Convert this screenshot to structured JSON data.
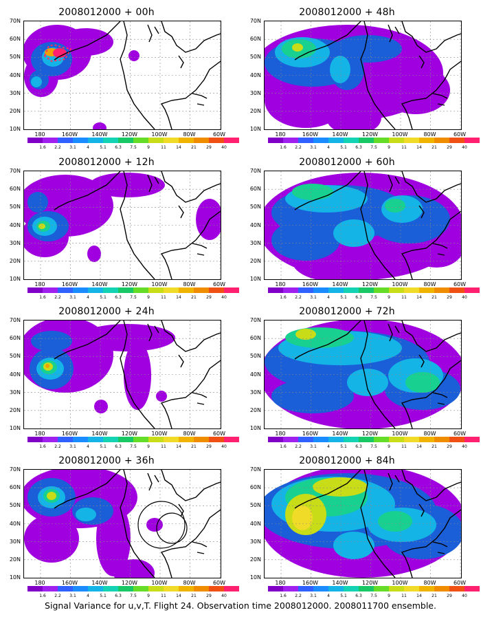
{
  "panels": [
    {
      "title": "2008012000 + 00h",
      "blobs": [
        {
          "color": "#a000e0",
          "ellipses": [
            [
              48,
              45,
              50,
              40
            ],
            [
              25,
              80,
              25,
              30
            ],
            [
              90,
              30,
              40,
              20
            ],
            [
              160,
              50,
              8,
              8
            ],
            [
              110,
              155,
              10,
              8
            ]
          ]
        },
        {
          "color": "#1a5fd8",
          "ellipses": [
            [
              40,
              55,
              30,
              25
            ],
            [
              22,
              85,
              14,
              14
            ]
          ]
        },
        {
          "color": "#14b4e6",
          "ellipses": [
            [
              42,
              52,
              16,
              14
            ],
            [
              18,
              88,
              8,
              8
            ]
          ]
        },
        {
          "color": "#f0a000",
          "ellipses": [
            [
              40,
              45,
              10,
              6
            ]
          ]
        },
        {
          "color": "#ff2070",
          "ellipses": [
            [
              52,
              46,
              10,
              7
            ]
          ]
        }
      ]
    },
    {
      "title": "2008012000 + 48h",
      "blobs": [
        {
          "color": "#a000e0",
          "ellipses": [
            [
              120,
              75,
              140,
              70
            ],
            [
              60,
              115,
              60,
              40
            ],
            [
              220,
              100,
              50,
              35
            ],
            [
              130,
              140,
              40,
              25
            ]
          ]
        },
        {
          "color": "#1a5fd8",
          "ellipses": [
            [
              70,
              60,
              70,
              35
            ],
            [
              150,
              40,
              50,
              20
            ],
            [
              120,
              70,
              25,
              30
            ]
          ]
        },
        {
          "color": "#14b4e6",
          "ellipses": [
            [
              55,
              45,
              40,
              22
            ],
            [
              110,
              70,
              15,
              20
            ]
          ]
        },
        {
          "color": "#18d090",
          "ellipses": [
            [
              50,
              40,
              25,
              14
            ]
          ]
        },
        {
          "color": "#c8dc18",
          "ellipses": [
            [
              48,
              38,
              8,
              6
            ]
          ]
        }
      ]
    },
    {
      "title": "2008012000 + 12h",
      "blobs": [
        {
          "color": "#a000e0",
          "ellipses": [
            [
              60,
              50,
              70,
              45
            ],
            [
              30,
              95,
              35,
              30
            ],
            [
              150,
              20,
              55,
              18
            ],
            [
              270,
              70,
              20,
              30
            ],
            [
              102,
              120,
              10,
              12
            ]
          ]
        },
        {
          "color": "#1a5fd8",
          "ellipses": [
            [
              35,
              80,
              30,
              22
            ],
            [
              20,
              45,
              15,
              15
            ]
          ]
        },
        {
          "color": "#14b4e6",
          "ellipses": [
            [
              30,
              80,
              18,
              14
            ]
          ]
        },
        {
          "color": "#18d090",
          "ellipses": [
            [
              28,
              80,
              10,
              8
            ]
          ]
        },
        {
          "color": "#c8dc18",
          "ellipses": [
            [
              26,
              80,
              5,
              4
            ]
          ]
        }
      ]
    },
    {
      "title": "2008012000 + 60h",
      "blobs": [
        {
          "color": "#a000e0",
          "ellipses": [
            [
              140,
              80,
              150,
              78
            ],
            [
              100,
              130,
              60,
              30
            ],
            [
              250,
              110,
              40,
              30
            ]
          ]
        },
        {
          "color": "#1a5fd8",
          "ellipses": [
            [
              110,
              60,
              100,
              40
            ],
            [
              210,
              70,
              60,
              35
            ],
            [
              60,
              100,
              50,
              30
            ]
          ]
        },
        {
          "color": "#14b4e6",
          "ellipses": [
            [
              90,
              40,
              60,
              20
            ],
            [
              200,
              55,
              30,
              20
            ],
            [
              130,
              90,
              30,
              20
            ]
          ]
        },
        {
          "color": "#18d090",
          "ellipses": [
            [
              70,
              30,
              30,
              12
            ],
            [
              190,
              50,
              15,
              10
            ]
          ]
        }
      ]
    },
    {
      "title": "2008012000 + 24h",
      "blobs": [
        {
          "color": "#a000e0",
          "ellipses": [
            [
              60,
              50,
              70,
              55
            ],
            [
              150,
              25,
              70,
              20
            ],
            [
              165,
              80,
              20,
              50
            ],
            [
              112,
              125,
              10,
              10
            ],
            [
              200,
              110,
              8,
              8
            ]
          ]
        },
        {
          "color": "#1a5fd8",
          "ellipses": [
            [
              40,
              70,
              32,
              30
            ],
            [
              40,
              30,
              30,
              15
            ]
          ]
        },
        {
          "color": "#14b4e6",
          "ellipses": [
            [
              38,
              70,
              20,
              16
            ]
          ]
        },
        {
          "color": "#18d090",
          "ellipses": [
            [
              36,
              68,
              12,
              10
            ]
          ]
        },
        {
          "color": "#c8dc18",
          "ellipses": [
            [
              35,
              67,
              7,
              6
            ]
          ]
        },
        {
          "color": "#f0a000",
          "ellipses": [
            [
              34,
              66,
              3,
              3
            ]
          ]
        }
      ]
    },
    {
      "title": "2008012000 + 72h",
      "blobs": [
        {
          "color": "#a000e0",
          "ellipses": [
            [
              143,
              78,
              150,
              80
            ]
          ]
        },
        {
          "color": "#1a5fd8",
          "ellipses": [
            [
              120,
              60,
              120,
              45
            ],
            [
              230,
              100,
              55,
              30
            ],
            [
              70,
              110,
              60,
              25
            ]
          ]
        },
        {
          "color": "#14b4e6",
          "ellipses": [
            [
              110,
              40,
              90,
              25
            ],
            [
              220,
              80,
              40,
              25
            ],
            [
              150,
              90,
              30,
              20
            ]
          ]
        },
        {
          "color": "#18d090",
          "ellipses": [
            [
              80,
              25,
              50,
              15
            ],
            [
              230,
              90,
              25,
              15
            ]
          ]
        },
        {
          "color": "#c8dc18",
          "ellipses": [
            [
              60,
              20,
              15,
              8
            ]
          ]
        }
      ]
    },
    {
      "title": "2008012000 + 36h",
      "blobs": [
        {
          "color": "#a000e0",
          "ellipses": [
            [
              80,
              40,
              85,
              45
            ],
            [
              40,
              100,
              40,
              35
            ],
            [
              130,
              100,
              25,
              55
            ],
            [
              190,
              80,
              12,
              10
            ],
            [
              160,
              150,
              30,
              20
            ]
          ]
        },
        {
          "color": "#1a5fd8",
          "ellipses": [
            [
              40,
              40,
              35,
              28
            ],
            [
              100,
              60,
              30,
              20
            ]
          ]
        },
        {
          "color": "#14b4e6",
          "ellipses": [
            [
              40,
              40,
              20,
              16
            ],
            [
              90,
              65,
              15,
              10
            ]
          ]
        },
        {
          "color": "#18d090",
          "ellipses": [
            [
              40,
              38,
              12,
              10
            ]
          ]
        },
        {
          "color": "#c8dc18",
          "ellipses": [
            [
              40,
              38,
              7,
              6
            ]
          ]
        }
      ]
    },
    {
      "title": "2008012000 + 84h",
      "blobs": [
        {
          "color": "#a000e0",
          "ellipses": [
            [
              143,
              75,
              150,
              82
            ]
          ]
        },
        {
          "color": "#1a5fd8",
          "ellipses": [
            [
              120,
              60,
              130,
              55
            ],
            [
              230,
              90,
              60,
              40
            ]
          ]
        },
        {
          "color": "#14b4e6",
          "ellipses": [
            [
              100,
              50,
              90,
              40
            ],
            [
              200,
              80,
              50,
              25
            ],
            [
              130,
              110,
              30,
              20
            ]
          ]
        },
        {
          "color": "#18d090",
          "ellipses": [
            [
              90,
              40,
              60,
              28
            ],
            [
              190,
              75,
              25,
              15
            ]
          ]
        },
        {
          "color": "#c8dc18",
          "ellipses": [
            [
              60,
              65,
              30,
              30
            ],
            [
              110,
              25,
              40,
              14
            ]
          ]
        },
        {
          "color": "#f0dc28",
          "ellipses": [
            [
              55,
              70,
              15,
              18
            ]
          ]
        }
      ]
    }
  ],
  "y_labels": [
    "70N",
    "60N",
    "50N",
    "40N",
    "30N",
    "20N",
    "10N"
  ],
  "x_labels": [
    "180",
    "160W",
    "140W",
    "120W",
    "100W",
    "80W",
    "60W"
  ],
  "colorbar": {
    "colors": [
      "#8000c8",
      "#a020f0",
      "#3060ff",
      "#1a8cff",
      "#14b4e6",
      "#14d2b4",
      "#18c864",
      "#64dc28",
      "#c8dc18",
      "#f0dc28",
      "#f0b400",
      "#f08c00",
      "#f05014",
      "#ff2070"
    ],
    "labels": [
      "1.6",
      "2.2",
      "3.1",
      "4",
      "5.1",
      "6.3",
      "7.5",
      "9",
      "11",
      "14",
      "21",
      "29",
      "40"
    ]
  },
  "caption": "Signal Variance for u,v,T. Flight 24. Observation time 2008012000. 2008011700 ensemble."
}
